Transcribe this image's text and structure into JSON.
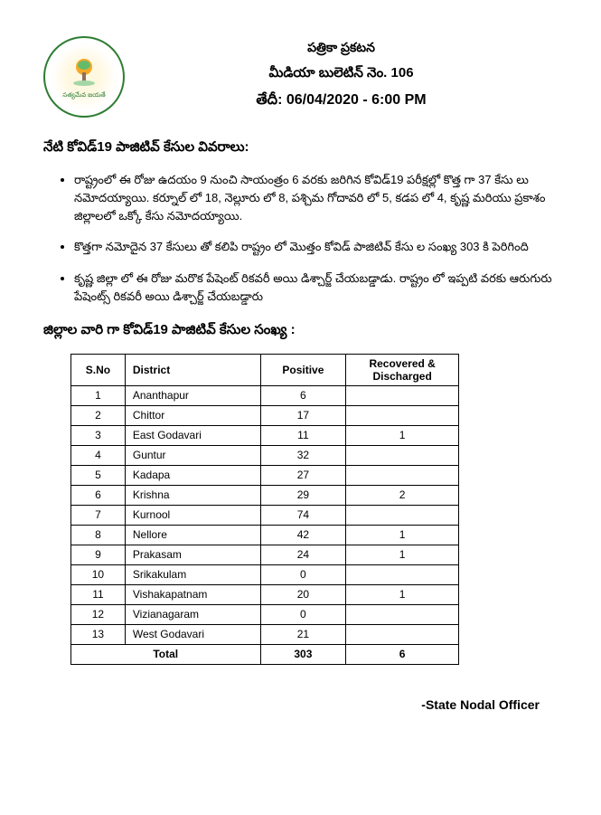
{
  "header": {
    "line1": "పత్రికా ప్రకటన",
    "line2": "మీడియా బులెటిన్ నెం. 106",
    "line3": "తేదీ: 06/04/2020 - 6:00 PM",
    "emblem_label": "సత్యమేవ జయతే"
  },
  "section1_title": "నేటి కోవిడ్19 పాజిటివ్ కేసుల వివరాలు:",
  "bullets": [
    "రాష్ట్రంలో ఈ రోజు ఉదయం 9 నుంచి సాయంత్రం 6 వరకు జరిగిన కోవిడ్19 పరీక్షల్లో కొత్త గా 37 కేసు లు నమోదయ్యాయి. కర్నూల్ లో 18, నెల్లూరు లో 8, పశ్చిమ గోదావరి లో 5, కడప లో 4, కృష్ణ మరియు ప్రకాశం జిల్లాలలో ఒక్కో కేసు నమోదయ్యాయి.",
    "కొత్తగా నమోదైన 37 కేసులు తో కలిపి రాష్ట్రం లో మొత్తం కోవిడ్ పాజిటివ్ కేసు ల సంఖ్య 303 కి పెరిగింది",
    "కృష్ణ జిల్లా లో ఈ రోజు మరొక పేషెంట్ రికవరీ అయి డిశ్చార్జ్ చేయబడ్డాడు. రాష్ట్రం లో ఇప్పటి వరకు ఆరుగురు పేషెంట్స్ రికవరీ అయి డిశ్చార్జ్ చేయబడ్డారు"
  ],
  "section2_title": "జిల్లాల వారి గా కోవిడ్19 పాజిటివ్ కేసుల సంఖ్య :",
  "table": {
    "headers": {
      "sno": "S.No",
      "district": "District",
      "positive": "Positive",
      "recovered": "Recovered & Discharged"
    },
    "rows": [
      {
        "sno": "1",
        "district": "Ananthapur",
        "positive": "6",
        "recovered": ""
      },
      {
        "sno": "2",
        "district": "Chittor",
        "positive": "17",
        "recovered": ""
      },
      {
        "sno": "3",
        "district": "East Godavari",
        "positive": "11",
        "recovered": "1"
      },
      {
        "sno": "4",
        "district": "Guntur",
        "positive": "32",
        "recovered": ""
      },
      {
        "sno": "5",
        "district": "Kadapa",
        "positive": "27",
        "recovered": ""
      },
      {
        "sno": "6",
        "district": "Krishna",
        "positive": "29",
        "recovered": "2"
      },
      {
        "sno": "7",
        "district": "Kurnool",
        "positive": "74",
        "recovered": ""
      },
      {
        "sno": "8",
        "district": "Nellore",
        "positive": "42",
        "recovered": "1"
      },
      {
        "sno": "9",
        "district": "Prakasam",
        "positive": "24",
        "recovered": "1"
      },
      {
        "sno": "10",
        "district": "Srikakulam",
        "positive": "0",
        "recovered": ""
      },
      {
        "sno": "11",
        "district": "Vishakapatnam",
        "positive": "20",
        "recovered": "1"
      },
      {
        "sno": "12",
        "district": "Vizianagaram",
        "positive": "0",
        "recovered": ""
      },
      {
        "sno": "13",
        "district": "West Godavari",
        "positive": "21",
        "recovered": ""
      }
    ],
    "total": {
      "label": "Total",
      "positive": "303",
      "recovered": "6"
    }
  },
  "signature": "-State Nodal Officer",
  "colors": {
    "emblem_border": "#2e7d32",
    "text": "#000000",
    "table_border": "#000000",
    "background": "#ffffff"
  }
}
